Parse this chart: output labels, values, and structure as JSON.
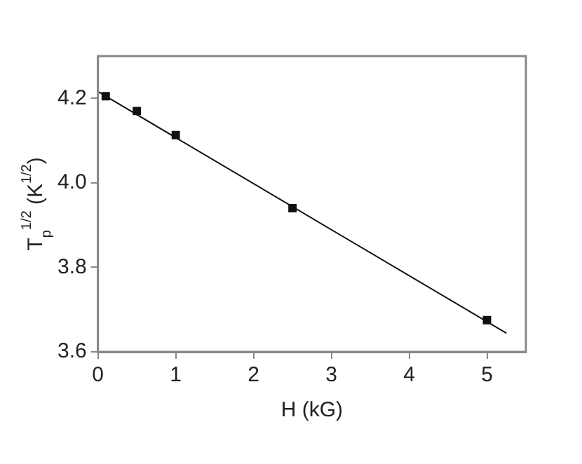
{
  "chart_data": {
    "type": "scatter",
    "xlabel": "H (kG)",
    "ylabel": "T$_{p}$$^{1/2}$ (K$^{1/2}$)",
    "xlim": [
      0,
      5.5
    ],
    "xticks": [
      0,
      1,
      2,
      3,
      4,
      5
    ],
    "ylim": [
      3.6,
      4.3
    ],
    "yticks": [
      {
        "value": 3.6,
        "label": "3.6"
      },
      {
        "value": 3.8,
        "label": "3.8"
      },
      {
        "value": 4.0,
        "label": "4.0"
      },
      {
        "value": 4.2,
        "label": "4.2"
      }
    ],
    "grid": false,
    "legend": false,
    "marker": "square",
    "series": [
      {
        "color": "#111111",
        "x": [
          0.1,
          0.5,
          1,
          2.5,
          5
        ],
        "values": [
          4.205,
          4.17,
          4.113,
          3.94,
          3.675
        ]
      },
      {
        "type": "line",
        "color": "#111111",
        "x": [
          0,
          5.25
        ],
        "values": [
          4.216,
          3.644
        ],
        "marker": "none"
      }
    ]
  }
}
